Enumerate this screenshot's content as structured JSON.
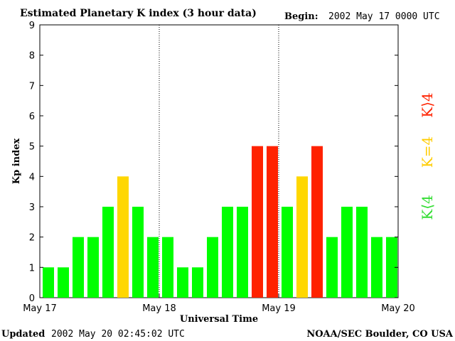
{
  "header": {
    "title": "Estimated Planetary K index (3 hour data)",
    "begin_label": "Begin:",
    "begin_value": "2002 May 17 0000 UTC"
  },
  "footer": {
    "updated_label": "Updated",
    "updated_value": "2002 May 20 02:45:02 UTC",
    "source": "NOAA/SEC Boulder, CO USA"
  },
  "legend": {
    "below": "K⟨4",
    "equal": "K=4",
    "above": "K⟩4"
  },
  "colors": {
    "below": "#00ff00",
    "equal": "#ffd700",
    "above": "#ff2200",
    "legend_below": "#33dd33",
    "legend_equal": "#ffcc00",
    "legend_above": "#ff2200"
  },
  "chart_data": {
    "type": "bar",
    "title": "Estimated Planetary K index (3 hour data)",
    "xlabel": "Universal Time",
    "ylabel": "Kp index",
    "ylim": [
      0,
      9
    ],
    "yticks": [
      "0",
      "1",
      "2",
      "3",
      "4",
      "5",
      "6",
      "7",
      "8",
      "9"
    ],
    "xticks": [
      "May 17",
      "May 18",
      "May 19",
      "May 20"
    ],
    "day_separators": true,
    "values": [
      1,
      1,
      2,
      2,
      3,
      4,
      3,
      2,
      2,
      1,
      1,
      2,
      3,
      3,
      5,
      5,
      3,
      4,
      5,
      2,
      3,
      3,
      2,
      2
    ]
  }
}
